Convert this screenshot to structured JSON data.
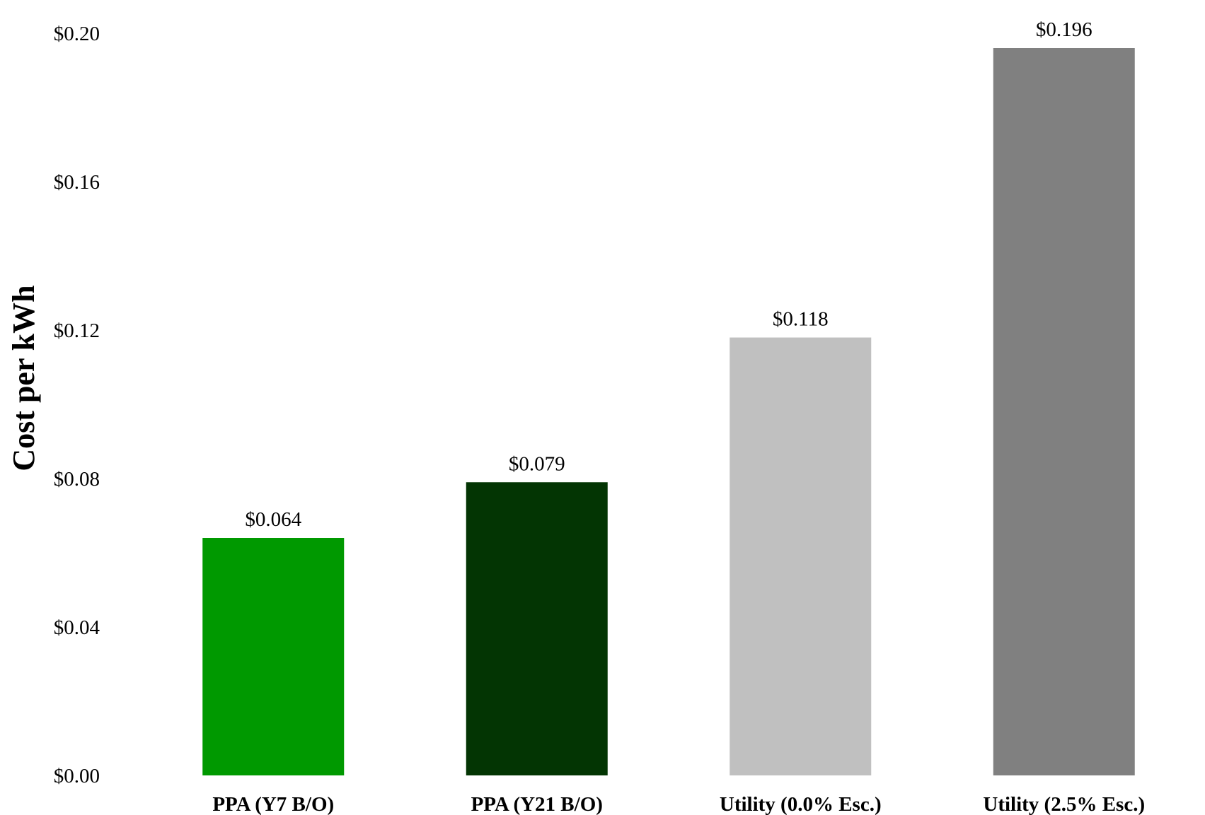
{
  "chart_data": {
    "type": "bar",
    "title": "",
    "xlabel": "",
    "ylabel": "Cost per kWh",
    "categories": [
      "PPA (Y7 B/O)",
      "PPA (Y21 B/O)",
      "Utility (0.0% Esc.)",
      "Utility (2.5% Esc.)"
    ],
    "values": [
      0.064,
      0.079,
      0.118,
      0.196
    ],
    "value_labels": [
      "$0.064",
      "$0.079",
      "$0.118",
      "$0.196"
    ],
    "bar_colors": [
      "#009900",
      "#033503",
      "#c0c0c0",
      "#808080"
    ],
    "ylim": [
      0,
      0.2
    ],
    "yticks": [
      0,
      0.04,
      0.08,
      0.12,
      0.16,
      0.2
    ],
    "ytick_labels": [
      "$0.00",
      "$0.04",
      "$0.08",
      "$0.12",
      "$0.16",
      "$0.20"
    ],
    "grid": false,
    "legend": "none"
  }
}
